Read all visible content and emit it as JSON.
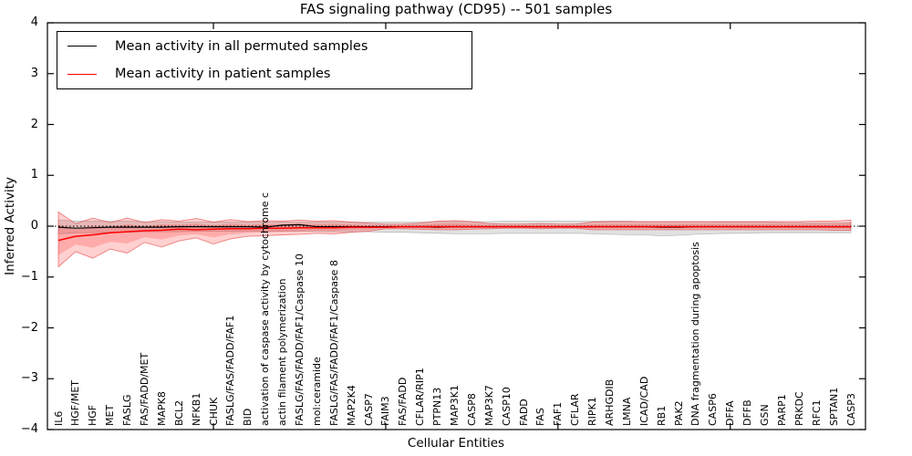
{
  "title": "FAS signaling pathway (CD95) -- 501 samples",
  "legend": {
    "items": [
      {
        "label": "Mean activity in all permuted samples",
        "color": "#000000"
      },
      {
        "label": "Mean activity in patient samples",
        "color": "#ff0000"
      }
    ],
    "position": "upper left"
  },
  "colors": {
    "patient_line": "#ff0000",
    "patient_band": "rgba(255,40,40,0.22)",
    "patient_band_edge": "rgba(230,70,70,0.65)",
    "permuted_line": "#000000",
    "permuted_band": "rgba(120,120,120,0.22)",
    "permuted_band_edge": "rgba(150,150,150,0.55)",
    "axis": "#000000",
    "background": "#ffffff"
  },
  "chart_data": {
    "type": "line",
    "title": "FAS signaling pathway (CD95) -- 501 samples",
    "xlabel": "Cellular Entities",
    "ylabel": "Inferred Activity",
    "ylim": [
      -4,
      4
    ],
    "y_ticks": [
      4,
      3,
      2,
      1,
      0,
      -1,
      -2,
      -3,
      -4
    ],
    "x_major_tick_positions": [
      10,
      20,
      30,
      40
    ],
    "grid": false,
    "zero_line_style": "dotted",
    "legend_position": "upper left",
    "n_samples": 501,
    "categories": [
      "IL6",
      "HGF/MET",
      "HGF",
      "MET",
      "FASLG",
      "FAS/FADD/MET",
      "MAPK8",
      "BCL2",
      "NFKB1",
      "CHUK",
      "FASLG/FAS/FADD/FAF1",
      "BID",
      "activation of caspase activity by cytochrome c",
      "actin filament polymerization",
      "FASLG/FAS/FADD/FAF1/Caspase 10",
      "mol:ceramide",
      "FASLG/FAS/FADD/FAF1/Caspase 8",
      "MAP2K4",
      "CASP7",
      "FAIM3",
      "FAS/FADD",
      "CFLAR/RIP1",
      "PTPN13",
      "MAP3K1",
      "CASP8",
      "MAP3K7",
      "CASP10",
      "FADD",
      "FAS",
      "FAF1",
      "CFLAR",
      "RIPK1",
      "ARHGDIB",
      "LMNA",
      "ICAD/CAD",
      "RB1",
      "PAK2",
      "DNA fragmentation during apoptosis",
      "CASP6",
      "DFFA",
      "DFFB",
      "GSN",
      "PARP1",
      "PRKDC",
      "RFC1",
      "SPTAN1",
      "CASP3"
    ],
    "series": [
      {
        "name": "Mean activity in all permuted samples",
        "color": "#000000",
        "values": [
          -0.02,
          -0.04,
          -0.03,
          -0.02,
          -0.02,
          -0.02,
          -0.02,
          -0.01,
          -0.01,
          -0.01,
          -0.01,
          -0.01,
          -0.02,
          0.02,
          0.03,
          -0.01,
          -0.01,
          -0.01,
          -0.01,
          -0.01,
          -0.01,
          -0.01,
          -0.02,
          -0.01,
          -0.01,
          -0.01,
          -0.01,
          -0.01,
          -0.01,
          -0.01,
          -0.01,
          -0.01,
          -0.01,
          -0.01,
          -0.01,
          -0.02,
          -0.02,
          -0.01,
          -0.01,
          -0.01,
          -0.01,
          -0.01,
          -0.01,
          -0.01,
          -0.01,
          -0.01,
          -0.01
        ],
        "band_upper": [
          0.12,
          0.1,
          0.1,
          0.1,
          0.1,
          0.09,
          0.09,
          0.08,
          0.08,
          0.08,
          0.08,
          0.08,
          0.08,
          0.08,
          0.08,
          0.08,
          0.08,
          0.08,
          0.08,
          0.08,
          0.08,
          0.08,
          0.09,
          0.09,
          0.09,
          0.09,
          0.1,
          0.1,
          0.1,
          0.1,
          0.1,
          0.1,
          0.1,
          0.1,
          0.09,
          0.09,
          0.09,
          0.09,
          0.08,
          0.08,
          0.08,
          0.08,
          0.07,
          0.07,
          0.07,
          0.07,
          0.07
        ],
        "band_lower": [
          -0.15,
          -0.13,
          -0.13,
          -0.12,
          -0.12,
          -0.11,
          -0.11,
          -0.11,
          -0.1,
          -0.1,
          -0.1,
          -0.1,
          -0.1,
          -0.1,
          -0.1,
          -0.1,
          -0.11,
          -0.11,
          -0.11,
          -0.12,
          -0.12,
          -0.13,
          -0.14,
          -0.15,
          -0.15,
          -0.15,
          -0.14,
          -0.14,
          -0.14,
          -0.14,
          -0.14,
          -0.15,
          -0.16,
          -0.17,
          -0.17,
          -0.19,
          -0.18,
          -0.16,
          -0.15,
          -0.14,
          -0.14,
          -0.13,
          -0.13,
          -0.13,
          -0.13,
          -0.13,
          -0.13
        ]
      },
      {
        "name": "Mean activity in patient samples",
        "color": "#ff0000",
        "values": [
          -0.28,
          -0.2,
          -0.17,
          -0.13,
          -0.11,
          -0.09,
          -0.08,
          -0.06,
          -0.07,
          -0.06,
          -0.05,
          -0.05,
          -0.04,
          -0.04,
          -0.03,
          -0.03,
          -0.03,
          -0.02,
          -0.02,
          -0.02,
          -0.01,
          -0.01,
          -0.01,
          -0.01,
          -0.01,
          -0.01,
          -0.01,
          -0.01,
          -0.01,
          -0.01,
          -0.01,
          -0.01,
          -0.01,
          -0.01,
          -0.01,
          -0.01,
          -0.01,
          -0.01,
          -0.01,
          -0.01,
          -0.01,
          -0.01,
          -0.01,
          -0.01,
          -0.01,
          -0.01,
          -0.01
        ],
        "band_upper": [
          0.28,
          0.05,
          0.16,
          0.07,
          0.16,
          0.07,
          0.13,
          0.1,
          0.15,
          0.08,
          0.13,
          0.09,
          0.11,
          0.1,
          0.12,
          0.1,
          0.11,
          0.08,
          0.06,
          0.04,
          0.04,
          0.06,
          0.1,
          0.11,
          0.09,
          0.05,
          0.04,
          0.04,
          0.05,
          0.04,
          0.04,
          0.08,
          0.09,
          0.09,
          0.09,
          0.09,
          0.09,
          0.09,
          0.09,
          0.09,
          0.09,
          0.09,
          0.09,
          0.09,
          0.1,
          0.1,
          0.12
        ],
        "band_lower": [
          -0.8,
          -0.5,
          -0.63,
          -0.45,
          -0.53,
          -0.32,
          -0.41,
          -0.29,
          -0.23,
          -0.35,
          -0.25,
          -0.2,
          -0.19,
          -0.17,
          -0.16,
          -0.14,
          -0.15,
          -0.12,
          -0.1,
          -0.05,
          -0.05,
          -0.06,
          -0.07,
          -0.07,
          -0.06,
          -0.05,
          -0.04,
          -0.04,
          -0.05,
          -0.04,
          -0.04,
          -0.07,
          -0.07,
          -0.07,
          -0.07,
          -0.07,
          -0.07,
          -0.07,
          -0.07,
          -0.07,
          -0.07,
          -0.07,
          -0.07,
          -0.07,
          -0.07,
          -0.08,
          -0.08
        ]
      }
    ]
  }
}
